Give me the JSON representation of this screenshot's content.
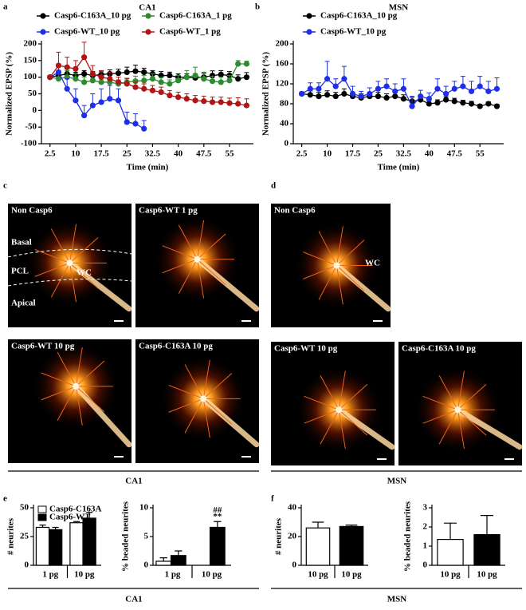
{
  "chart_data": [
    {
      "type": "line",
      "panel": "a",
      "title": "CA1",
      "x_label": "Time (min)",
      "y_label": "Normalized EPSP (%)",
      "x": [
        2.5,
        5,
        7.5,
        10,
        12.5,
        15,
        17.5,
        20,
        22.5,
        25,
        27.5,
        30,
        32.5,
        35,
        37.5,
        40,
        42.5,
        45,
        47.5,
        50,
        52.5,
        55,
        57.5,
        60
      ],
      "xlim": [
        0,
        62
      ],
      "xticks": [
        2.5,
        10,
        17.5,
        25,
        32.5,
        40,
        47.5,
        55
      ],
      "ylim": [
        -100,
        200
      ],
      "yticks": [
        -100,
        -50,
        0,
        50,
        100,
        150,
        200
      ],
      "series": [
        {
          "name": "Casp6-C163A_10 pg",
          "color": "#000000",
          "values": [
            100,
            105,
            110,
            105,
            110,
            105,
            108,
            110,
            112,
            115,
            118,
            115,
            110,
            105,
            105,
            100,
            100,
            98,
            100,
            105,
            108,
            105,
            95,
            100
          ],
          "errors": [
            5,
            15,
            15,
            10,
            10,
            12,
            10,
            12,
            12,
            15,
            18,
            12,
            10,
            12,
            10,
            10,
            10,
            12,
            12,
            14,
            12,
            12,
            12,
            14
          ]
        },
        {
          "name": "Casp6-C163A_1 pg",
          "color": "#2e8b2e",
          "values": [
            100,
            95,
            100,
            95,
            85,
            90,
            85,
            85,
            80,
            85,
            88,
            90,
            95,
            85,
            80,
            90,
            100,
            105,
            95,
            88,
            85,
            90,
            140,
            140
          ],
          "errors": [
            5,
            20,
            20,
            15,
            15,
            15,
            12,
            12,
            12,
            12,
            15,
            15,
            15,
            15,
            12,
            15,
            20,
            25,
            20,
            15,
            15,
            15,
            10,
            8
          ]
        },
        {
          "name": "Casp6-WT_10 pg",
          "color": "#1f2ee8",
          "values": [
            100,
            115,
            65,
            30,
            -15,
            15,
            25,
            35,
            30,
            -35,
            -40,
            -55,
            null,
            null,
            null,
            null,
            null,
            null,
            null,
            null,
            null,
            null,
            null,
            null
          ],
          "errors": [
            5,
            25,
            30,
            35,
            30,
            35,
            40,
            40,
            35,
            30,
            30,
            25,
            null,
            null,
            null,
            null,
            null,
            null,
            null,
            null,
            null,
            null,
            null,
            null
          ]
        },
        {
          "name": "Casp6-WT_1 pg",
          "color": "#b01515",
          "values": [
            100,
            135,
            130,
            125,
            160,
            110,
            100,
            95,
            85,
            80,
            70,
            65,
            60,
            55,
            45,
            40,
            35,
            30,
            28,
            25,
            25,
            22,
            20,
            15
          ],
          "errors": [
            5,
            40,
            30,
            25,
            45,
            25,
            20,
            20,
            15,
            15,
            15,
            15,
            15,
            15,
            15,
            15,
            15,
            15,
            15,
            15,
            15,
            15,
            18,
            20
          ]
        }
      ]
    },
    {
      "type": "line",
      "panel": "b",
      "title": "MSN",
      "x_label": "Time (min)",
      "y_label": "Normalized EPSP (%)",
      "x": [
        2.5,
        5,
        7.5,
        10,
        12.5,
        15,
        17.5,
        20,
        22.5,
        25,
        27.5,
        30,
        32.5,
        35,
        37.5,
        40,
        42.5,
        45,
        47.5,
        50,
        52.5,
        55,
        57.5,
        60
      ],
      "xlim": [
        0,
        62
      ],
      "xticks": [
        2.5,
        10,
        17.5,
        25,
        32.5,
        40,
        47.5,
        55
      ],
      "ylim": [
        0,
        200
      ],
      "yticks": [
        0,
        40,
        80,
        120,
        160,
        200
      ],
      "series": [
        {
          "name": "Casp6-C163A_10 pg",
          "color": "#000000",
          "values": [
            100,
            98,
            95,
            98,
            95,
            100,
            95,
            92,
            95,
            95,
            92,
            95,
            90,
            85,
            88,
            80,
            82,
            88,
            85,
            82,
            80,
            75,
            80,
            75
          ],
          "errors": [
            4,
            8,
            8,
            8,
            8,
            10,
            8,
            8,
            8,
            8,
            8,
            8,
            8,
            8,
            8,
            6,
            6,
            6,
            6,
            5,
            5,
            4,
            4,
            4
          ]
        },
        {
          "name": "Casp6-WT_10 pg",
          "color": "#1f2ee8",
          "values": [
            100,
            110,
            110,
            130,
            115,
            130,
            100,
            95,
            100,
            110,
            115,
            105,
            110,
            75,
            95,
            90,
            110,
            100,
            110,
            115,
            105,
            115,
            105,
            110
          ],
          "errors": [
            4,
            12,
            12,
            35,
            15,
            25,
            15,
            10,
            12,
            15,
            15,
            15,
            20,
            20,
            12,
            12,
            20,
            15,
            15,
            20,
            20,
            20,
            20,
            22
          ]
        }
      ]
    },
    {
      "type": "bar",
      "panel": "e",
      "y_label": "# neurites",
      "categories": [
        "1 pg",
        "10 pg"
      ],
      "ylim": [
        0,
        50
      ],
      "yticks": [
        0,
        25,
        50
      ],
      "series": [
        {
          "name": "Casp6-C163A",
          "color": "#ffffff",
          "values": [
            33,
            37
          ],
          "errors": [
            2,
            1
          ]
        },
        {
          "name": "Casp6-WT",
          "color": "#000000",
          "values": [
            31,
            41
          ],
          "errors": [
            2,
            5
          ]
        }
      ]
    },
    {
      "type": "bar",
      "y_label": "% beaded neurites",
      "categories": [
        "1 pg",
        "10 pg"
      ],
      "ylim": [
        0,
        10
      ],
      "yticks": [
        0,
        5,
        10
      ],
      "series": [
        {
          "name": "Casp6-C163A",
          "color": "#ffffff",
          "values": [
            0.7,
            0
          ],
          "errors": [
            0.6,
            0
          ]
        },
        {
          "name": "Casp6-WT",
          "color": "#000000",
          "values": [
            1.7,
            6.6
          ],
          "errors": [
            0.8,
            1.0
          ]
        }
      ],
      "annotations": [
        "##",
        "**"
      ]
    },
    {
      "type": "bar",
      "panel": "f",
      "y_label": "# neurites",
      "categories": [
        "10 pg",
        "10 pg"
      ],
      "ylim": [
        0,
        40
      ],
      "yticks": [
        0,
        20,
        40
      ],
      "values": [
        26,
        27
      ],
      "errors": [
        4,
        1
      ],
      "colors": [
        "#ffffff",
        "#000000"
      ]
    },
    {
      "type": "bar",
      "y_label": "% beaded neurites",
      "categories": [
        "10 pg",
        "10 pg"
      ],
      "ylim": [
        0,
        3
      ],
      "yticks": [
        0,
        1,
        2,
        3
      ],
      "values": [
        1.35,
        1.6
      ],
      "errors": [
        0.85,
        1.0
      ],
      "colors": [
        "#ffffff",
        "#000000"
      ]
    }
  ],
  "images": {
    "c": {
      "panel": "c",
      "caption": "CA1",
      "tiles": [
        "Non Casp6",
        "Casp6-WT 1 pg",
        "Casp6-WT 10 pg",
        "Casp6-C163A 10 pg"
      ],
      "regions": [
        "Basal",
        "PCL",
        "Apical"
      ],
      "pipette": "WC"
    },
    "d": {
      "panel": "d",
      "caption": "MSN",
      "tiles": [
        "Non Casp6",
        "Casp6-WT 10 pg",
        "Casp6-C163A 10 pg"
      ],
      "pipette": "WC"
    }
  },
  "captions": [
    "CA1",
    "MSN"
  ]
}
